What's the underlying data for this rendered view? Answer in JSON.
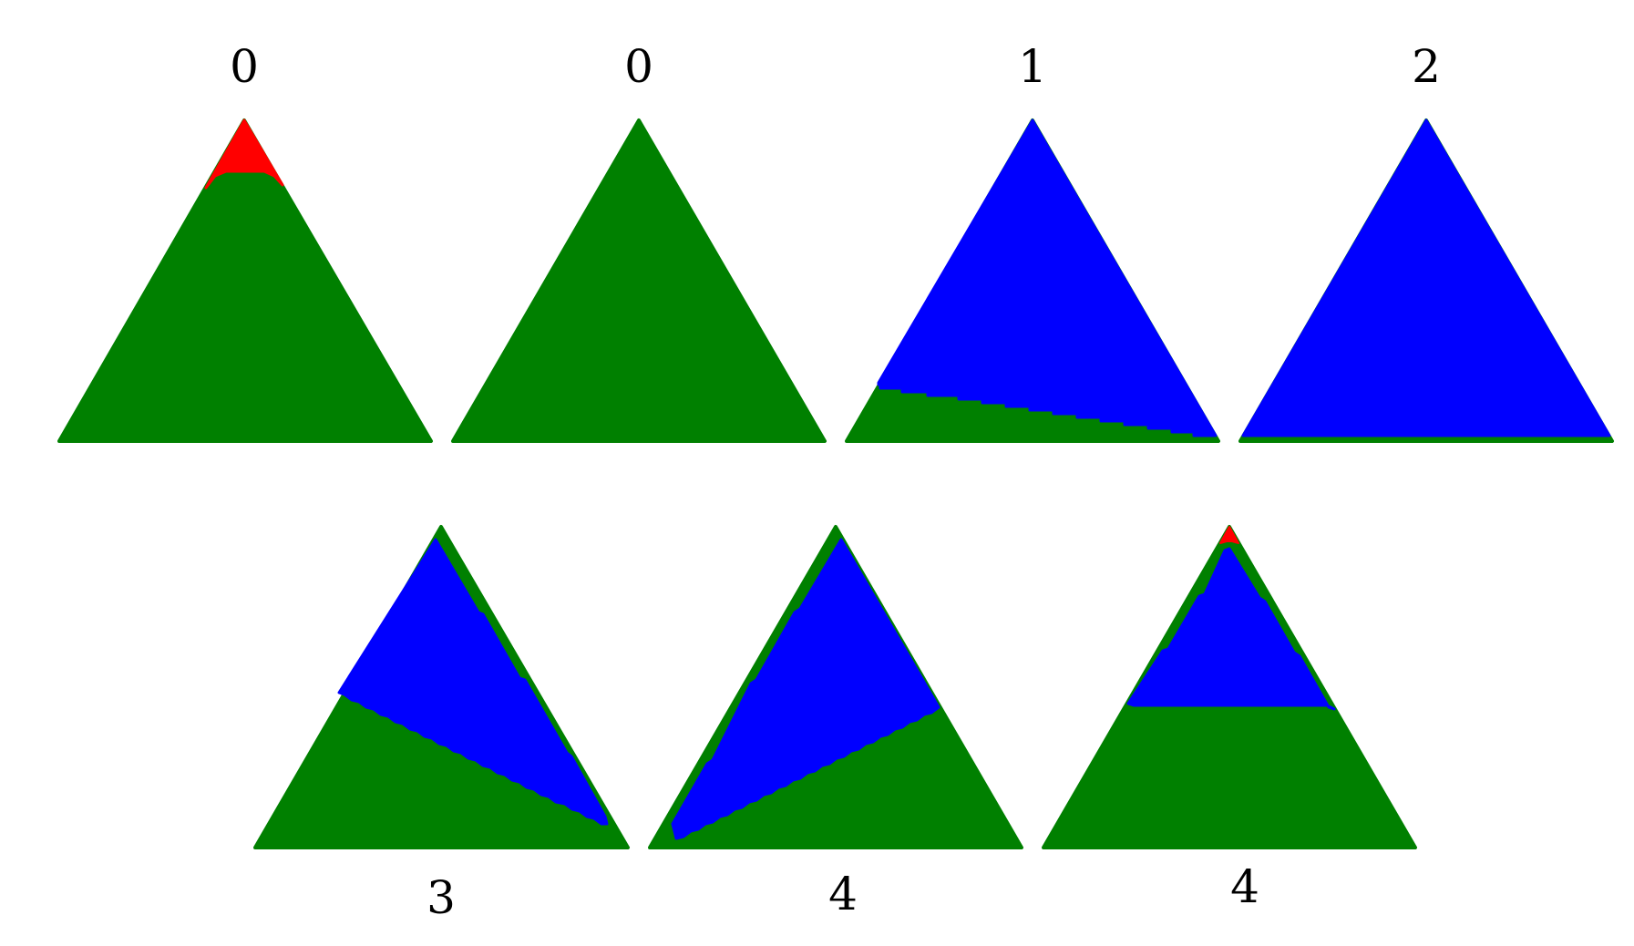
{
  "colors": {
    "red": "#ff0000",
    "green": "#008000",
    "blue": "#0000ff"
  },
  "panels": [
    {
      "id": "p1",
      "label": "0"
    },
    {
      "id": "p2",
      "label": "0"
    },
    {
      "id": "p3",
      "label": "1"
    },
    {
      "id": "p4",
      "label": "2"
    },
    {
      "id": "p5",
      "label": "3"
    },
    {
      "id": "p6",
      "label": "4"
    },
    {
      "id": "p7",
      "label": "4"
    }
  ]
}
